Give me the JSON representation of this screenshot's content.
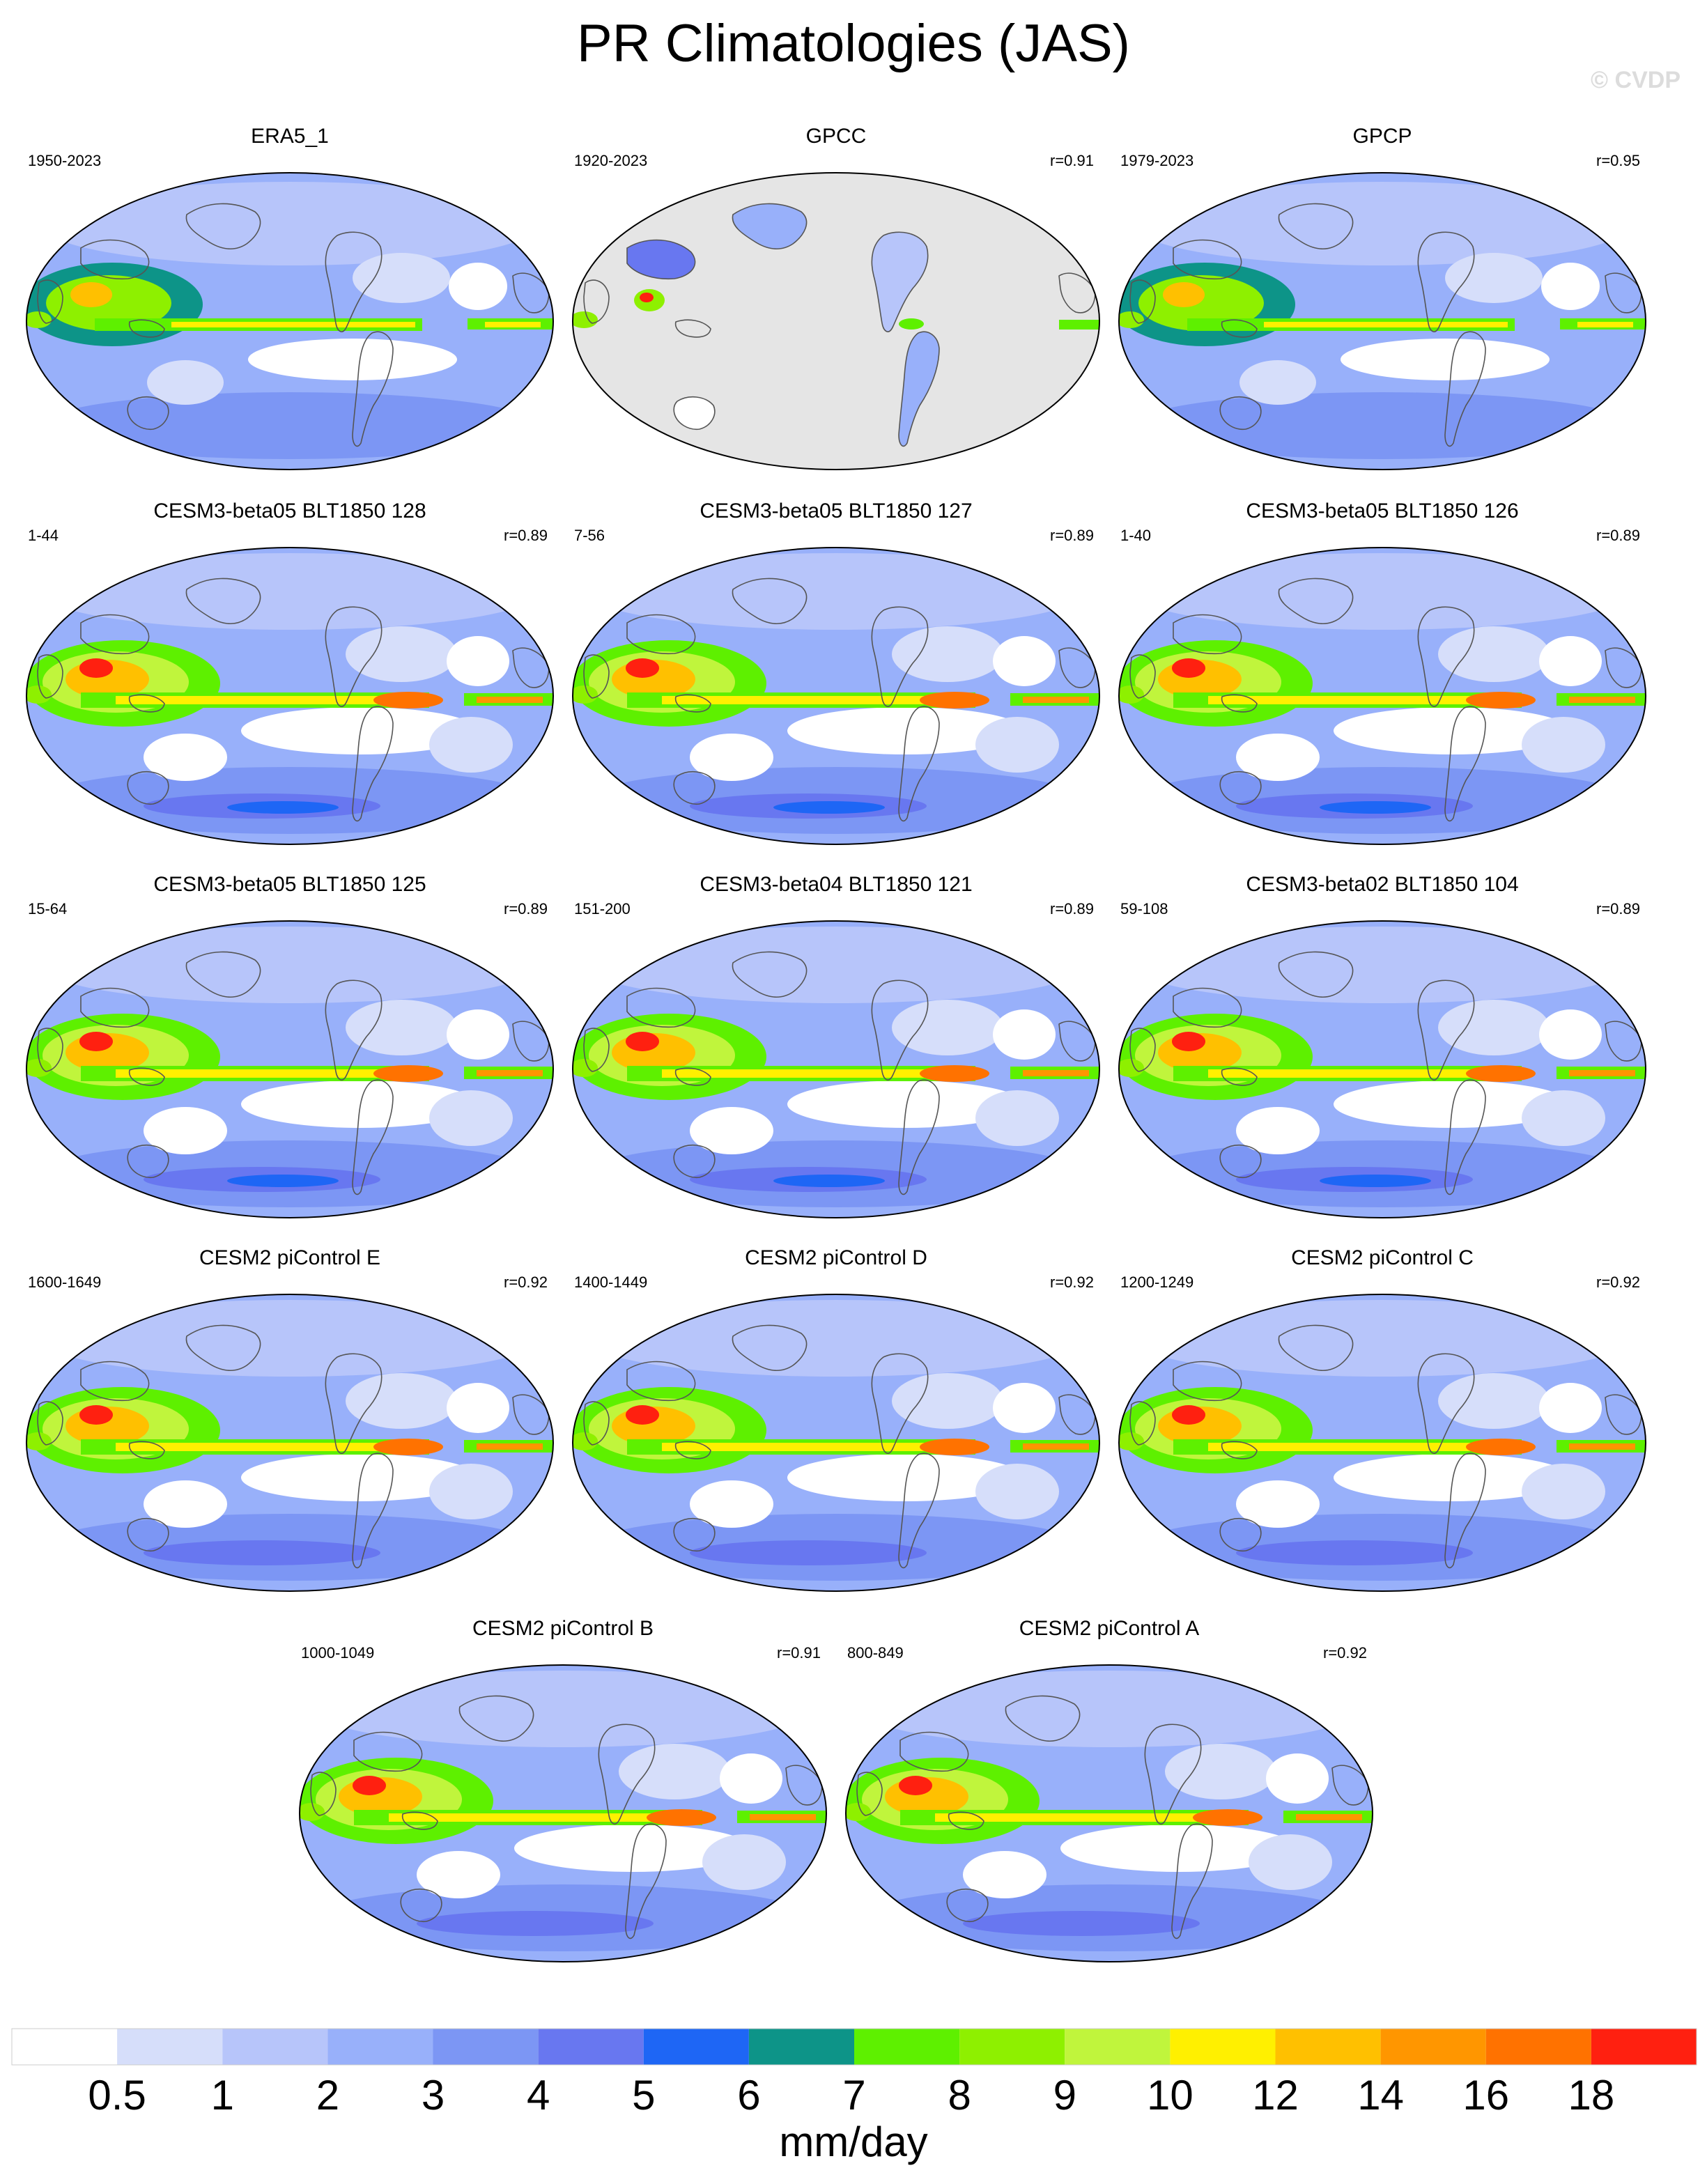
{
  "title": "PR Climatologies (JAS)",
  "watermark": "© CVDP",
  "chart_data": {
    "type": "heatmap",
    "unit": "mm/day",
    "colorbar": {
      "levels": [
        "0.5",
        "1",
        "2",
        "3",
        "4",
        "5",
        "6",
        "7",
        "8",
        "9",
        "10",
        "12",
        "14",
        "16",
        "18"
      ],
      "colors": [
        "#ffffff",
        "#d6defa",
        "#b7c5fa",
        "#98b0fa",
        "#7c96f4",
        "#6877f0",
        "#1e66f5",
        "#0d9488",
        "#5ef000",
        "#8ef000",
        "#c0f53c",
        "#fff000",
        "#ffc000",
        "#ff9600",
        "#ff7200",
        "#ff2010"
      ]
    },
    "panels": [
      {
        "title": "ERA5_1",
        "years": "1950-2023",
        "r": "",
        "style": "obs"
      },
      {
        "title": "GPCC",
        "years": "1920-2023",
        "r": "r=0.91",
        "style": "land"
      },
      {
        "title": "GPCP",
        "years": "1979-2023",
        "r": "r=0.95",
        "style": "obs"
      },
      {
        "title": "CESM3-beta05 BLT1850 128",
        "years": "1-44",
        "r": "r=0.89",
        "style": "model"
      },
      {
        "title": "CESM3-beta05 BLT1850 127",
        "years": "7-56",
        "r": "r=0.89",
        "style": "model"
      },
      {
        "title": "CESM3-beta05 BLT1850 126",
        "years": "1-40",
        "r": "r=0.89",
        "style": "model"
      },
      {
        "title": "CESM3-beta05 BLT1850 125",
        "years": "15-64",
        "r": "r=0.89",
        "style": "model"
      },
      {
        "title": "CESM3-beta04 BLT1850 121",
        "years": "151-200",
        "r": "r=0.89",
        "style": "model"
      },
      {
        "title": "CESM3-beta02 BLT1850 104",
        "years": "59-108",
        "r": "r=0.89",
        "style": "model"
      },
      {
        "title": "CESM2 piControl E",
        "years": "1600-1649",
        "r": "r=0.92",
        "style": "model"
      },
      {
        "title": "CESM2 piControl D",
        "years": "1400-1449",
        "r": "r=0.92",
        "style": "model"
      },
      {
        "title": "CESM2 piControl C",
        "years": "1200-1249",
        "r": "r=0.92",
        "style": "model"
      },
      {
        "title": "CESM2 piControl B",
        "years": "1000-1049",
        "r": "r=0.91",
        "style": "model"
      },
      {
        "title": "CESM2 piControl A",
        "years": "800-849",
        "r": "r=0.92",
        "style": "model"
      }
    ]
  }
}
